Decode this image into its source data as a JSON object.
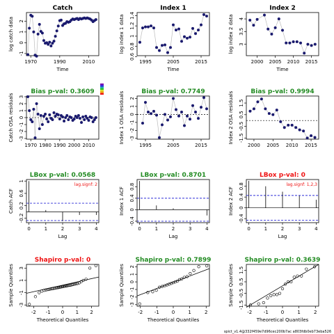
{
  "footer": "spict_v1.4@332f459e7d96cec200b7ac a803fdb0eb73eba526",
  "colors": {
    "point": "#1a1a6e",
    "line": "#bbbbbb",
    "green": "#228b22",
    "red": "#ee1111",
    "blue": "#2b2bd6",
    "white": "#ffffff",
    "black": "#000000",
    "legend": [
      "#7a0eb0",
      "#2222dd",
      "#22aaaa",
      "#22cc22",
      "#dddd22",
      "#ee9911",
      "#ee1111"
    ]
  },
  "chart_data": [
    {
      "id": "catch",
      "type": "line",
      "title": "Catch",
      "title_color": "#000000",
      "xlabel": "Time",
      "ylabel": "log catch data",
      "xlim": [
        1967,
        2017
      ],
      "ylim": [
        -1.2,
        2.8
      ],
      "xticks": [
        1970,
        1990,
        2010
      ],
      "yticks": [
        -1,
        0,
        1,
        2
      ],
      "x": [
        1968,
        1969,
        1970,
        1971,
        1972,
        1973,
        1974,
        1975,
        1976,
        1977,
        1978,
        1979,
        1980,
        1981,
        1982,
        1983,
        1984,
        1985,
        1986,
        1987,
        1988,
        1989,
        1990,
        1991,
        1992,
        1993,
        1994,
        1995,
        1996,
        1997,
        1998,
        1999,
        2000,
        2001,
        2002,
        2003,
        2004,
        2005,
        2006,
        2007,
        2008,
        2009,
        2010,
        2011,
        2012,
        2013,
        2014,
        2015
      ],
      "y": [
        -1.1,
        1.35,
        2.55,
        2.45,
        1.0,
        -1.15,
        -1.25,
        0.8,
        1.7,
        1.05,
        0.9,
        0.2,
        -0.05,
        0.0,
        -0.15,
        0.05,
        -0.3,
        -0.05,
        0.15,
        0.6,
        1.1,
        1.55,
        2.05,
        2.1,
        1.6,
        1.75,
        1.8,
        1.95,
        1.9,
        1.95,
        2.1,
        2.2,
        2.15,
        2.2,
        2.25,
        2.15,
        2.25,
        2.2,
        2.25,
        2.3,
        2.25,
        2.3,
        2.25,
        2.2,
        2.1,
        1.95,
        2.05,
        2.15
      ],
      "connect": true,
      "legend_swatch": true
    },
    {
      "id": "index1",
      "type": "line",
      "title": "Index 1",
      "title_color": "#000000",
      "xlabel": "Time",
      "ylabel": "log index 1 data",
      "xlim": [
        1992,
        2018
      ],
      "ylim": [
        0.62,
        1.46
      ],
      "xticks": [
        1995,
        2005,
        2015
      ],
      "yticks": [
        0.6,
        0.8,
        1.0,
        1.2,
        1.4
      ],
      "x": [
        1993,
        1994,
        1995,
        1996,
        1997,
        1998,
        1999,
        2000,
        2001,
        2002,
        2003,
        2004,
        2005,
        2006,
        2007,
        2008,
        2009,
        2010,
        2011,
        2012,
        2013,
        2014,
        2015,
        2016,
        2017
      ],
      "y": [
        0.88,
        1.16,
        1.18,
        1.18,
        1.2,
        1.16,
        0.78,
        0.72,
        0.82,
        0.83,
        0.68,
        0.78,
        1.22,
        1.12,
        1.14,
        0.9,
        0.99,
        0.96,
        0.98,
        1.15,
        1.05,
        1.12,
        1.22,
        1.42,
        1.39
      ],
      "connect": true
    },
    {
      "id": "index2",
      "type": "line",
      "title": "Index 2",
      "title_color": "#000000",
      "xlabel": "Time",
      "ylabel": "log index 2 data",
      "xlim": [
        1997,
        2017
      ],
      "ylim": [
        2.55,
        4.25
      ],
      "xticks": [
        2000,
        2005,
        2010,
        2015
      ],
      "yticks": [
        3.0,
        3.5,
        4.0
      ],
      "x": [
        1998,
        1999,
        2000,
        2002,
        2003,
        2004,
        2005,
        2006,
        2007,
        2008,
        2009,
        2010,
        2011,
        2012,
        2013,
        2014,
        2015,
        2016
      ],
      "y": [
        3.95,
        3.75,
        3.98,
        4.15,
        3.6,
        3.4,
        3.65,
        4.0,
        3.55,
        3.05,
        3.05,
        3.1,
        3.1,
        3.05,
        2.65,
        3.0,
        2.95,
        3.0
      ],
      "connect": true
    },
    {
      "id": "catch_res",
      "type": "scatter",
      "title": "Bias p-val: 0.3609",
      "title_color": "#228b22",
      "xlabel": "",
      "ylabel": "Catch OSA residuals",
      "xlim": [
        1967,
        2017
      ],
      "ylim": [
        -3.1,
        3.1
      ],
      "xticks": [
        1970,
        1980,
        1990,
        2000,
        2010
      ],
      "yticks": [
        -3,
        -2,
        -1,
        0,
        1,
        2,
        3
      ],
      "x": [
        1968,
        1969,
        1970,
        1971,
        1972,
        1973,
        1974,
        1975,
        1976,
        1977,
        1978,
        1979,
        1980,
        1981,
        1982,
        1983,
        1984,
        1985,
        1986,
        1987,
        1988,
        1989,
        1990,
        1991,
        1992,
        1993,
        1994,
        1995,
        1996,
        1997,
        1998,
        1999,
        2000,
        2001,
        2002,
        2003,
        2004,
        2005,
        2006,
        2007,
        2008,
        2009,
        2010,
        2011,
        2012,
        2013,
        2014,
        2015
      ],
      "y": [
        3.0,
        1.0,
        -0.3,
        -0.6,
        1.2,
        -2.9,
        2.0,
        0.5,
        -1.6,
        0.3,
        -1.0,
        0.2,
        0.5,
        -0.2,
        -0.6,
        0.4,
        -0.1,
        -0.3,
        0.7,
        0.2,
        0.5,
        0.4,
        -0.2,
        0.3,
        0.1,
        -0.5,
        0.0,
        0.3,
        -0.3,
        0.1,
        0.0,
        -0.4,
        -0.2,
        0.2,
        0.0,
        0.3,
        -0.1,
        -0.7,
        0.1,
        -0.3,
        0.2,
        -0.1,
        -0.4,
        0.1,
        0.0,
        -0.6,
        -0.3,
        0.0
      ],
      "connect": true,
      "hline": 0
    },
    {
      "id": "index1_res",
      "type": "scatter",
      "title": "Bias p-val: 0.7749",
      "title_color": "#228b22",
      "xlabel": "",
      "ylabel": "Index 1 OSA residuals",
      "xlim": [
        1992,
        2018
      ],
      "ylim": [
        -3.1,
        2.3
      ],
      "xticks": [
        1995,
        2005,
        2015
      ],
      "yticks": [
        -3,
        -2,
        -1,
        0,
        1,
        2
      ],
      "x": [
        1994,
        1995,
        1996,
        1997,
        1998,
        1999,
        2000,
        2001,
        2002,
        2003,
        2004,
        2005,
        2006,
        2007,
        2008,
        2009,
        2010,
        2011,
        2012,
        2013,
        2014,
        2015,
        2016,
        2017
      ],
      "y": [
        -1.1,
        1.5,
        0.3,
        0.1,
        0.4,
        -0.1,
        -2.9,
        -1.3,
        0.0,
        -0.7,
        -0.3,
        2.0,
        0.6,
        -0.2,
        0.3,
        -1.4,
        -0.2,
        -0.6,
        1.1,
        0.3,
        -0.5,
        0.9,
        2.1,
        0.7
      ],
      "connect": true,
      "hline": 0
    },
    {
      "id": "index2_res",
      "type": "scatter",
      "title": "Bias p-val: 0.9994",
      "title_color": "#228b22",
      "xlabel": "",
      "ylabel": "Index 2 OSA residuals",
      "xlim": [
        1998,
        2017
      ],
      "ylim": [
        -1.6,
        2.1
      ],
      "xticks": [
        2000,
        2005,
        2010,
        2015
      ],
      "yticks": [
        -1.5,
        -0.5,
        0.5,
        1.5
      ],
      "x": [
        1999,
        2000,
        2001,
        2002,
        2003,
        2004,
        2005,
        2006,
        2007,
        2008,
        2009,
        2010,
        2011,
        2012,
        2013,
        2014,
        2015,
        2016
      ],
      "y": [
        0.8,
        1.0,
        1.6,
        1.85,
        1.0,
        0.6,
        0.5,
        0.9,
        -0.1,
        -0.6,
        -0.4,
        -0.4,
        -0.6,
        -0.8,
        -0.9,
        -1.5,
        -1.3,
        -1.45
      ],
      "connect": true,
      "hline": 0
    },
    {
      "id": "catch_acf",
      "type": "acf",
      "title": "LBox p-val: 0.0568",
      "title_color": "#228b22",
      "xlabel": "Lag",
      "ylabel": "Catch ACF",
      "xlim": [
        -0.15,
        4.15
      ],
      "ylim": [
        -0.35,
        1.05
      ],
      "xticks": [
        0,
        1,
        2,
        3,
        4
      ],
      "yticks": [
        -0.2,
        0.2,
        0.6,
        1.0
      ],
      "lags": [
        0,
        1,
        2,
        3,
        4
      ],
      "acf": [
        1.0,
        0.06,
        -0.3,
        -0.1,
        -0.1
      ],
      "ci": 0.28,
      "note": "lag.signf: 2"
    },
    {
      "id": "index1_acf",
      "type": "acf",
      "title": "LBox p-val: 0.8701",
      "title_color": "#228b22",
      "xlabel": "Lag",
      "ylabel": "Index 1 ACF",
      "xlim": [
        -0.15,
        4.15
      ],
      "ylim": [
        -0.45,
        1.05
      ],
      "xticks": [
        0,
        1,
        2,
        3,
        4
      ],
      "yticks": [
        -0.4,
        0.0,
        0.4,
        0.8
      ],
      "lags": [
        0,
        1,
        2,
        3,
        4
      ],
      "acf": [
        1.0,
        0.15,
        0.05,
        0.0,
        -0.2
      ],
      "ci": 0.4,
      "note": ""
    },
    {
      "id": "index2_acf",
      "type": "acf",
      "title": "LBox p-val: 0",
      "title_color": "#ee1111",
      "xlabel": "Lag",
      "ylabel": "Index 2 ACF",
      "xlim": [
        -0.15,
        4.15
      ],
      "ylim": [
        -0.55,
        1.05
      ],
      "xticks": [
        0,
        1,
        2,
        3,
        4
      ],
      "yticks": [
        -0.4,
        0.0,
        0.4,
        0.8
      ],
      "lags": [
        0,
        1,
        2,
        3,
        4
      ],
      "acf": [
        1.0,
        0.8,
        0.6,
        0.45,
        0.3
      ],
      "ci": 0.46,
      "note": "lag.signf: 1,2,3"
    },
    {
      "id": "catch_qq",
      "type": "qq",
      "title": "Shapiro p-val: 0",
      "title_color": "#ee1111",
      "xlabel": "Theoretical Quantiles",
      "ylabel": "Sample Quantiles",
      "xlim": [
        -2.5,
        2.5
      ],
      "ylim": [
        -3.2,
        3.6
      ],
      "xticks": [
        -2,
        -1,
        0,
        1,
        2
      ],
      "yticks": [
        -3,
        -1,
        1,
        3
      ],
      "x": [
        -2.3,
        -1.88,
        -1.62,
        -1.43,
        -1.28,
        -1.15,
        -1.03,
        -0.93,
        -0.83,
        -0.74,
        -0.66,
        -0.58,
        -0.5,
        -0.42,
        -0.35,
        -0.28,
        -0.21,
        -0.14,
        -0.07,
        0.0,
        0.07,
        0.14,
        0.21,
        0.28,
        0.35,
        0.42,
        0.5,
        0.58,
        0.66,
        0.74,
        0.83,
        0.93,
        1.03,
        1.15,
        1.28,
        1.43,
        1.62,
        1.88,
        2.3
      ],
      "y": [
        -2.9,
        -1.65,
        -1.0,
        -0.75,
        -0.62,
        -0.55,
        -0.5,
        -0.45,
        -0.4,
        -0.35,
        -0.32,
        -0.28,
        -0.25,
        -0.2,
        -0.18,
        -0.15,
        -0.12,
        -0.08,
        -0.05,
        0.0,
        0.02,
        0.05,
        0.08,
        0.1,
        0.15,
        0.18,
        0.2,
        0.25,
        0.3,
        0.35,
        0.4,
        0.45,
        0.5,
        0.6,
        0.8,
        1.0,
        1.2,
        3.0,
        3.4
      ],
      "line": [
        [
          -2.5,
          -1.1
        ],
        [
          2.5,
          1.55
        ]
      ]
    },
    {
      "id": "index1_qq",
      "type": "qq",
      "title": "Shapiro p-val: 0.7899",
      "title_color": "#228b22",
      "xlabel": "Theoretical Quantiles",
      "ylabel": "Sample Quantiles",
      "xlim": [
        -2.2,
        2.2
      ],
      "ylim": [
        -3.2,
        2.3
      ],
      "xticks": [
        -2,
        -1,
        0,
        1,
        2
      ],
      "yticks": [
        -3,
        -2,
        -1,
        0,
        1,
        2
      ],
      "x": [
        -2.04,
        -1.55,
        -1.25,
        -1.03,
        -0.84,
        -0.67,
        -0.52,
        -0.38,
        -0.25,
        -0.12,
        0.0,
        0.12,
        0.25,
        0.38,
        0.52,
        0.67,
        0.84,
        1.03,
        1.25,
        1.55,
        2.04
      ],
      "y": [
        -2.9,
        -1.4,
        -1.3,
        -1.1,
        -0.7,
        -0.6,
        -0.5,
        -0.4,
        -0.3,
        -0.2,
        -0.1,
        0.0,
        0.1,
        0.3,
        0.4,
        0.6,
        0.7,
        1.1,
        1.5,
        2.0,
        2.1
      ],
      "line": [
        [
          -2.2,
          -1.85
        ],
        [
          2.2,
          1.75
        ]
      ]
    },
    {
      "id": "index2_qq",
      "type": "qq",
      "title": "Shapiro p-val: 0.3639",
      "title_color": "#228b22",
      "xlabel": "Theoretical Quantiles",
      "ylabel": "Sample Quantiles",
      "xlim": [
        -2.2,
        2.2
      ],
      "ylim": [
        -1.6,
        2.0
      ],
      "xticks": [
        -2,
        -1,
        0,
        1,
        2
      ],
      "yticks": [
        -1.5,
        -0.5,
        0.5,
        1.5
      ],
      "x": [
        -1.95,
        -1.45,
        -1.15,
        -0.91,
        -0.71,
        -0.52,
        -0.34,
        -0.17,
        0.0,
        0.17,
        0.34,
        0.52,
        0.71,
        0.91,
        1.15,
        1.45,
        1.95
      ],
      "y": [
        -1.5,
        -1.4,
        -1.3,
        -0.9,
        -0.7,
        -0.6,
        -0.6,
        -0.5,
        -0.1,
        0.3,
        0.5,
        0.5,
        0.9,
        1.0,
        1.0,
        1.6,
        1.8
      ],
      "line": [
        [
          -2.2,
          -1.7
        ],
        [
          2.2,
          2.0
        ]
      ]
    }
  ]
}
